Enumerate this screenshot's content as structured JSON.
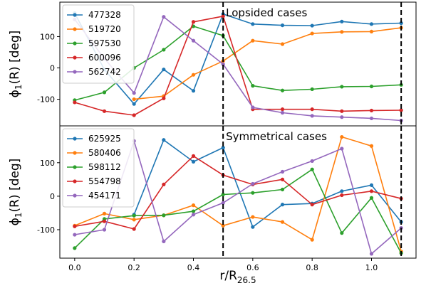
{
  "chart_data": [
    {
      "type": "line",
      "title": "Lopsided cases",
      "ylabel": "ϕ",
      "ylabel_sub": "1",
      "ylabel_rest": "(R) [deg]",
      "xlim": [
        -0.05,
        1.15
      ],
      "ylim": [
        -185,
        210
      ],
      "yticks": [
        -100,
        0,
        100
      ],
      "xticks": [],
      "vlines": [
        0.5,
        1.1
      ],
      "legend_position": "top-left",
      "x": [
        0.0,
        0.1,
        0.2,
        0.3,
        0.4,
        0.5,
        0.6,
        0.7,
        0.8,
        0.9,
        1.0,
        1.1
      ],
      "series": [
        {
          "name": "477328",
          "color": "#1f77b4",
          "values": [
            175,
            -5,
            -115,
            -5,
            -73,
            172,
            140,
            136,
            135,
            148,
            140,
            143
          ]
        },
        {
          "name": "519720",
          "color": "#ff7f0e",
          "values": [
            null,
            null,
            -100,
            -90,
            -22,
            22,
            87,
            76,
            110,
            115,
            116,
            128
          ]
        },
        {
          "name": "597530",
          "color": "#2ca02c",
          "values": [
            -103,
            -78,
            0,
            58,
            133,
            103,
            -57,
            -72,
            -68,
            -60,
            -59,
            -54
          ]
        },
        {
          "name": "600096",
          "color": "#d62728",
          "values": [
            -110,
            -138,
            -151,
            -97,
            147,
            165,
            -132,
            -132,
            -132,
            -138,
            -136,
            -135
          ]
        },
        {
          "name": "562742",
          "color": "#9467bd",
          "values": [
            155,
            30,
            -80,
            163,
            87,
            12,
            -126,
            -143,
            -153,
            -157,
            -161,
            -168
          ]
        }
      ]
    },
    {
      "type": "line",
      "title": "Symmetrical cases",
      "ylabel": "ϕ",
      "ylabel_sub": "1",
      "ylabel_rest": "(R) [deg]",
      "xlabel": "r/R",
      "xlabel_sub": "26.5",
      "xlim": [
        -0.05,
        1.15
      ],
      "ylim": [
        -185,
        210
      ],
      "yticks": [
        -100,
        0,
        100
      ],
      "xticks": [
        "0.0",
        "0.2",
        "0.4",
        "0.6",
        "0.8",
        "1.0"
      ],
      "xtick_values": [
        0.0,
        0.2,
        0.4,
        0.6,
        0.8,
        1.0
      ],
      "vlines": [
        0.5,
        1.1
      ],
      "legend_position": "top-left",
      "x": [
        0.0,
        0.1,
        0.2,
        0.3,
        0.4,
        0.5,
        0.6,
        0.7,
        0.8,
        0.9,
        1.0,
        1.1
      ],
      "series": [
        {
          "name": "625925",
          "color": "#1f77b4",
          "values": [
            null,
            null,
            -55,
            168,
            103,
            145,
            -92,
            -25,
            -22,
            15,
            33,
            -77
          ]
        },
        {
          "name": "580406",
          "color": "#ff7f0e",
          "values": [
            -88,
            -52,
            -70,
            -57,
            -27,
            -88,
            -62,
            -77,
            -130,
            177,
            150,
            -165
          ]
        },
        {
          "name": "598112",
          "color": "#2ca02c",
          "values": [
            -155,
            -68,
            -58,
            -57,
            -45,
            5,
            10,
            20,
            80,
            -110,
            -5,
            -170
          ]
        },
        {
          "name": "554798",
          "color": "#d62728",
          "values": [
            -90,
            -75,
            -98,
            35,
            120,
            63,
            35,
            50,
            -25,
            3,
            15,
            -7
          ]
        },
        {
          "name": "454171",
          "color": "#9467bd",
          "values": [
            -115,
            -100,
            165,
            -135,
            -55,
            -20,
            37,
            73,
            105,
            142,
            -172,
            -95
          ]
        }
      ]
    }
  ]
}
